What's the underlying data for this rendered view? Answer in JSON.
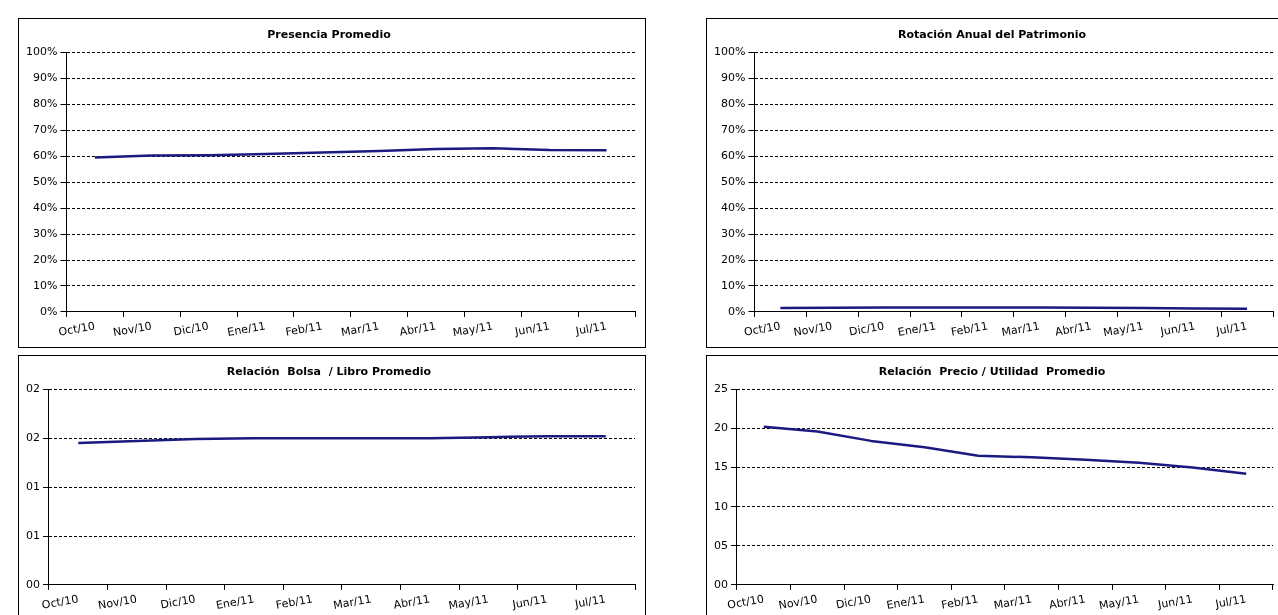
{
  "chart_data": [
    {
      "type": "line",
      "title": "Presencia Promedio",
      "categories": [
        "Oct/10",
        "Nov/10",
        "Dic/10",
        "Ene/11",
        "Feb/11",
        "Mar/11",
        "Abr/11",
        "May/11",
        "Jun/11",
        "Jul/11"
      ],
      "series": [
        {
          "color": "#1a1a80",
          "values": [
            59.5,
            60.2,
            60.3,
            60.8,
            61.4,
            62,
            62.7,
            63,
            62.4,
            62.3
          ]
        }
      ],
      "ylim": [
        0,
        100
      ],
      "yticks": [
        {
          "value": 0,
          "label": "0%"
        },
        {
          "value": 10,
          "label": "10%"
        },
        {
          "value": 20,
          "label": "20%"
        },
        {
          "value": 30,
          "label": "30%"
        },
        {
          "value": 40,
          "label": "40%"
        },
        {
          "value": 50,
          "label": "50%"
        },
        {
          "value": 60,
          "label": "60%"
        },
        {
          "value": 70,
          "label": "70%"
        },
        {
          "value": 80,
          "label": "80%"
        },
        {
          "value": 90,
          "label": "90%"
        },
        {
          "value": 100,
          "label": "100%"
        }
      ],
      "grid": "y",
      "legend": false
    },
    {
      "type": "line",
      "title": "Rotación Anual del Patrimonio",
      "categories": [
        "Oct/10",
        "Nov/10",
        "Dic/10",
        "Ene/11",
        "Feb/11",
        "Mar/11",
        "Abr/11",
        "May/11",
        "Jun/11",
        "Jul/11"
      ],
      "series": [
        {
          "color": "#1a1a80",
          "values": [
            1.5,
            1.6,
            1.7,
            1.7,
            1.7,
            1.7,
            1.6,
            1.5,
            1.3,
            1.2
          ]
        }
      ],
      "ylim": [
        0,
        100
      ],
      "yticks": [
        {
          "value": 0,
          "label": "0%"
        },
        {
          "value": 10,
          "label": "10%"
        },
        {
          "value": 20,
          "label": "20%"
        },
        {
          "value": 30,
          "label": "30%"
        },
        {
          "value": 40,
          "label": "40%"
        },
        {
          "value": 50,
          "label": "50%"
        },
        {
          "value": 60,
          "label": "60%"
        },
        {
          "value": 70,
          "label": "70%"
        },
        {
          "value": 80,
          "label": "80%"
        },
        {
          "value": 90,
          "label": "90%"
        },
        {
          "value": 100,
          "label": "100%"
        }
      ],
      "grid": "y",
      "legend": false
    },
    {
      "type": "line",
      "title": "Relación  Bolsa  / Libro Promedio",
      "categories": [
        "Oct/10",
        "Nov/10",
        "Dic/10",
        "Ene/11",
        "Feb/11",
        "Mar/11",
        "Abr/11",
        "May/11",
        "Jun/11",
        "Jul/11"
      ],
      "series": [
        {
          "color": "#1a1a80",
          "values": [
            1.45,
            1.47,
            1.49,
            1.5,
            1.5,
            1.5,
            1.5,
            1.51,
            1.52,
            1.52
          ]
        }
      ],
      "ylim": [
        0,
        2
      ],
      "yticks": [
        {
          "value": 0,
          "label": "00"
        },
        {
          "value": 0.5,
          "label": "01"
        },
        {
          "value": 1,
          "label": "01"
        },
        {
          "value": 1.5,
          "label": "02"
        },
        {
          "value": 2,
          "label": "02"
        }
      ],
      "grid": "y",
      "legend": false
    },
    {
      "type": "line",
      "title": "Relación  Precio / Utilidad  Promedio",
      "categories": [
        "Oct/10",
        "Nov/10",
        "Dic/10",
        "Ene/11",
        "Feb/11",
        "Mar/11",
        "Abr/11",
        "May/11",
        "Jun/11",
        "Jul/11"
      ],
      "series": [
        {
          "color": "#1a1a80",
          "values": [
            20.2,
            19.6,
            18.4,
            17.6,
            16.5,
            16.3,
            16.0,
            15.6,
            15.0,
            14.2
          ]
        }
      ],
      "ylim": [
        0,
        25
      ],
      "yticks": [
        {
          "value": 0,
          "label": "00"
        },
        {
          "value": 5,
          "label": "05"
        },
        {
          "value": 10,
          "label": "10"
        },
        {
          "value": 15,
          "label": "15"
        },
        {
          "value": 20,
          "label": "20"
        },
        {
          "value": 25,
          "label": "25"
        }
      ],
      "grid": "y",
      "legend": false
    }
  ]
}
